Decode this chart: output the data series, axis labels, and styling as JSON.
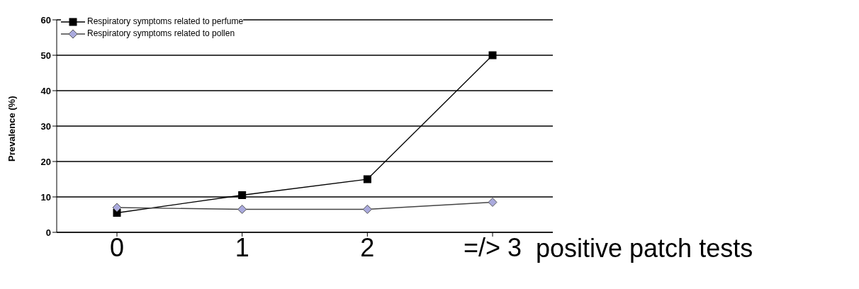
{
  "chart_data": {
    "type": "line",
    "categories": [
      "0",
      "1",
      "2",
      "=/> 3"
    ],
    "xlabel": "positive patch tests",
    "ylabel": "Prevalence (%)",
    "ylim": [
      0,
      60
    ],
    "yticks": [
      0,
      10,
      20,
      30,
      40,
      50,
      60
    ],
    "grid": "y",
    "legend": "top left",
    "series": [
      {
        "name": "Respiratory symptoms related to perfume",
        "color": "#000000",
        "marker": "square",
        "values": [
          5.5,
          10.5,
          15,
          50
        ]
      },
      {
        "name": "Respiratory symptoms related to pollen",
        "color": "#aaaadd",
        "marker": "diamond",
        "values": [
          7,
          6.5,
          6.5,
          8.5
        ]
      }
    ]
  }
}
